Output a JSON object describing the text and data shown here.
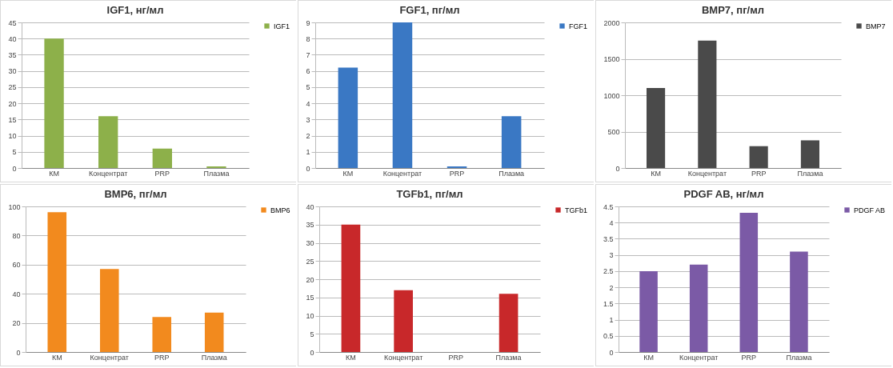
{
  "chart_data": [
    {
      "type": "bar",
      "title": "IGF1, нг/мл",
      "categories": [
        "КМ",
        "Концентрат",
        "PRP",
        "Плазма"
      ],
      "series": [
        {
          "name": "IGF1",
          "color": "#8db04a",
          "values": [
            40,
            16,
            6,
            0.5
          ]
        }
      ],
      "ylim": [
        0,
        45
      ],
      "yticks": [
        0,
        5,
        10,
        15,
        20,
        25,
        30,
        35,
        40,
        45
      ],
      "grid": "y",
      "legend": "right"
    },
    {
      "type": "bar",
      "title": "FGF1, пг/мл",
      "categories": [
        "КМ",
        "Концентрат",
        "PRP",
        "Плазма"
      ],
      "series": [
        {
          "name": "FGF1",
          "color": "#3a78c4",
          "values": [
            6.2,
            9,
            0.1,
            3.2
          ]
        }
      ],
      "ylim": [
        0,
        9
      ],
      "yticks": [
        0,
        1,
        2,
        3,
        4,
        5,
        6,
        7,
        8,
        9
      ],
      "grid": "y",
      "legend": "right"
    },
    {
      "type": "bar",
      "title": "BMP7, пг/мл",
      "categories": [
        "КМ",
        "Концентрат",
        "PRP",
        "Плазма"
      ],
      "series": [
        {
          "name": "BMP7",
          "color": "#4a4a4a",
          "values": [
            1100,
            1750,
            300,
            380
          ]
        }
      ],
      "ylim": [
        0,
        2000
      ],
      "yticks": [
        0,
        500,
        1000,
        1500,
        2000
      ],
      "grid": "y",
      "legend": "right"
    },
    {
      "type": "bar",
      "title": "BMP6, пг/мл",
      "categories": [
        "КМ",
        "Концентрат",
        "PRP",
        "Плазма"
      ],
      "series": [
        {
          "name": "BMP6",
          "color": "#f28a1e",
          "values": [
            96,
            57,
            24,
            27
          ]
        }
      ],
      "ylim": [
        0,
        100
      ],
      "yticks": [
        0,
        20,
        40,
        60,
        80,
        100
      ],
      "grid": "y",
      "legend": "right"
    },
    {
      "type": "bar",
      "title": "TGFb1, пг/мл",
      "categories": [
        "КМ",
        "Концентрат",
        "PRP",
        "Плазма"
      ],
      "series": [
        {
          "name": "TGFb1",
          "color": "#c8282a",
          "values": [
            35,
            17,
            0,
            16
          ]
        }
      ],
      "ylim": [
        0,
        40
      ],
      "yticks": [
        0,
        5,
        10,
        15,
        20,
        25,
        30,
        35,
        40
      ],
      "grid": "y",
      "legend": "right"
    },
    {
      "type": "bar",
      "title": "PDGF AB, нг/мл",
      "categories": [
        "КМ",
        "Концентрат",
        "PRP",
        "Плазма"
      ],
      "series": [
        {
          "name": "PDGF AB",
          "color": "#7b5aa6",
          "values": [
            2.5,
            2.7,
            4.3,
            3.1
          ]
        }
      ],
      "ylim": [
        0,
        4.5
      ],
      "yticks": [
        0,
        0.5,
        1,
        1.5,
        2,
        2.5,
        3,
        3.5,
        4,
        4.5
      ],
      "grid": "y",
      "legend": "right"
    }
  ]
}
